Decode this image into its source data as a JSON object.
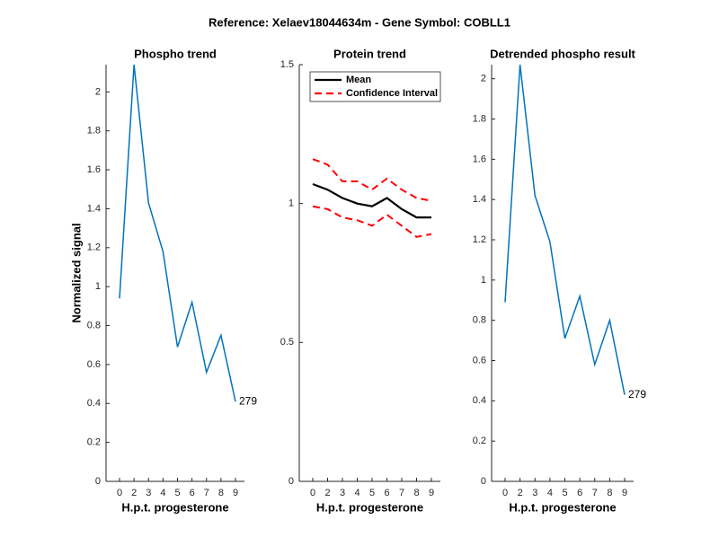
{
  "title": "Reference:  Xelaev18044634m - Gene Symbol:  COBLL1",
  "chart_data": [
    {
      "type": "line",
      "title": "Phospho trend",
      "xlabel": "H.p.t. progesterone",
      "ylabel": "Normalized signal",
      "categories": [
        "0",
        "2",
        "3",
        "4",
        "5",
        "6",
        "7",
        "8",
        "9"
      ],
      "values": [
        0.94,
        2.14,
        1.43,
        1.18,
        0.69,
        0.92,
        0.56,
        0.75,
        0.41
      ],
      "color": "#0072bd",
      "annotation": "279",
      "ylim": [
        0,
        2.14
      ],
      "yticks": [
        0,
        0.2,
        0.4,
        0.6,
        0.8,
        1,
        1.2,
        1.4,
        1.6,
        1.8,
        2
      ]
    },
    {
      "type": "band-line",
      "title": "Protein trend",
      "xlabel": "H.p.t. progesterone",
      "categories": [
        "0",
        "2",
        "3",
        "4",
        "5",
        "6",
        "7",
        "8",
        "9"
      ],
      "series": [
        {
          "name": "Mean",
          "color": "#000000",
          "values": [
            1.07,
            1.05,
            1.02,
            1.0,
            0.99,
            1.02,
            0.98,
            0.95,
            0.95
          ]
        },
        {
          "name": "Confidence Interval",
          "color": "#ff0000",
          "dashed": true,
          "upper": [
            1.16,
            1.14,
            1.08,
            1.08,
            1.05,
            1.09,
            1.05,
            1.02,
            1.01
          ],
          "lower": [
            0.99,
            0.98,
            0.95,
            0.94,
            0.92,
            0.96,
            0.92,
            0.88,
            0.89
          ]
        }
      ],
      "legend": "northwest",
      "ylim": [
        0,
        1.5
      ],
      "yticks": [
        0,
        0.5,
        1,
        1.5
      ]
    },
    {
      "type": "line",
      "title": "Detrended phospho result",
      "xlabel": "H.p.t. progesterone",
      "categories": [
        "0",
        "2",
        "3",
        "4",
        "5",
        "6",
        "7",
        "8",
        "9"
      ],
      "values": [
        0.89,
        2.07,
        1.42,
        1.19,
        0.71,
        0.92,
        0.58,
        0.8,
        0.43
      ],
      "color": "#0072bd",
      "annotation": "279",
      "ylim": [
        0,
        2.07
      ],
      "yticks": [
        0,
        0.2,
        0.4,
        0.6,
        0.8,
        1,
        1.2,
        1.4,
        1.6,
        1.8,
        2
      ]
    }
  ]
}
